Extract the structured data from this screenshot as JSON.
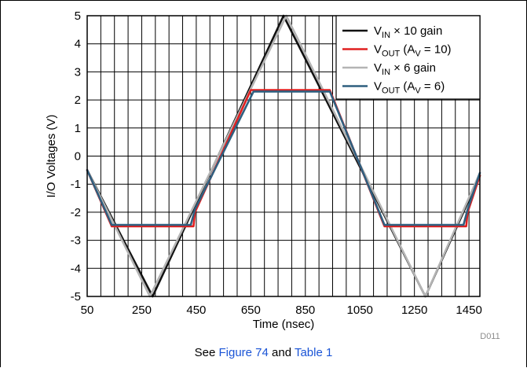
{
  "chart_data": {
    "type": "line",
    "xlabel": "Time (nsec)",
    "ylabel": "I/O Voltages (V)",
    "xlim": [
      50,
      1490
    ],
    "ylim": [
      -5,
      5
    ],
    "xticks": [
      50,
      250,
      450,
      650,
      850,
      1050,
      1250,
      1450
    ],
    "yticks": [
      -5,
      -4,
      -3,
      -2,
      -1,
      0,
      1,
      2,
      3,
      4,
      5
    ],
    "minor_x_step": 50,
    "grid": true,
    "legend_position": "top-right",
    "figure_id": "D011",
    "series": [
      {
        "name_main": "V",
        "name_sub": "IN",
        "name_rest": " × 10 gain",
        "color": "#111111",
        "points": [
          [
            50,
            -0.5
          ],
          [
            290,
            -5.0
          ],
          [
            770,
            5.0
          ],
          [
            1290,
            -5.0
          ],
          [
            1490,
            -0.7
          ]
        ]
      },
      {
        "name_main": "V",
        "name_sub": "OUT",
        "name_rest": " (A",
        "name_sub2": "V",
        "name_rest2": " = 10)",
        "color": "#e02020",
        "points": [
          [
            50,
            -0.5
          ],
          [
            140,
            -2.5
          ],
          [
            440,
            -2.5
          ],
          [
            445,
            -2.0
          ],
          [
            650,
            2.35
          ],
          [
            940,
            2.35
          ],
          [
            1140,
            -2.5
          ],
          [
            1440,
            -2.5
          ],
          [
            1445,
            -2.0
          ],
          [
            1490,
            -0.7
          ]
        ]
      },
      {
        "name_main": "V",
        "name_sub": "IN",
        "name_rest": " × 6 gain",
        "color": "#b4b4b4",
        "points": [
          [
            50,
            -0.5
          ],
          [
            280,
            -5.0
          ],
          [
            780,
            5.0
          ],
          [
            1290,
            -5.0
          ],
          [
            1490,
            -0.6
          ]
        ]
      },
      {
        "name_main": "V",
        "name_sub": "OUT",
        "name_rest": " (A",
        "name_sub2": "V",
        "name_rest2": " = 6)",
        "color": "#2f5f7f",
        "points": [
          [
            50,
            -0.5
          ],
          [
            140,
            -2.45
          ],
          [
            430,
            -2.45
          ],
          [
            445,
            -1.9
          ],
          [
            660,
            2.3
          ],
          [
            940,
            2.3
          ],
          [
            1140,
            -2.45
          ],
          [
            1430,
            -2.45
          ],
          [
            1445,
            -1.9
          ],
          [
            1490,
            -0.6
          ]
        ]
      }
    ]
  },
  "caption": {
    "prefix": "See ",
    "link1": "Figure 74",
    "middle": " and ",
    "link2": "Table 1"
  }
}
